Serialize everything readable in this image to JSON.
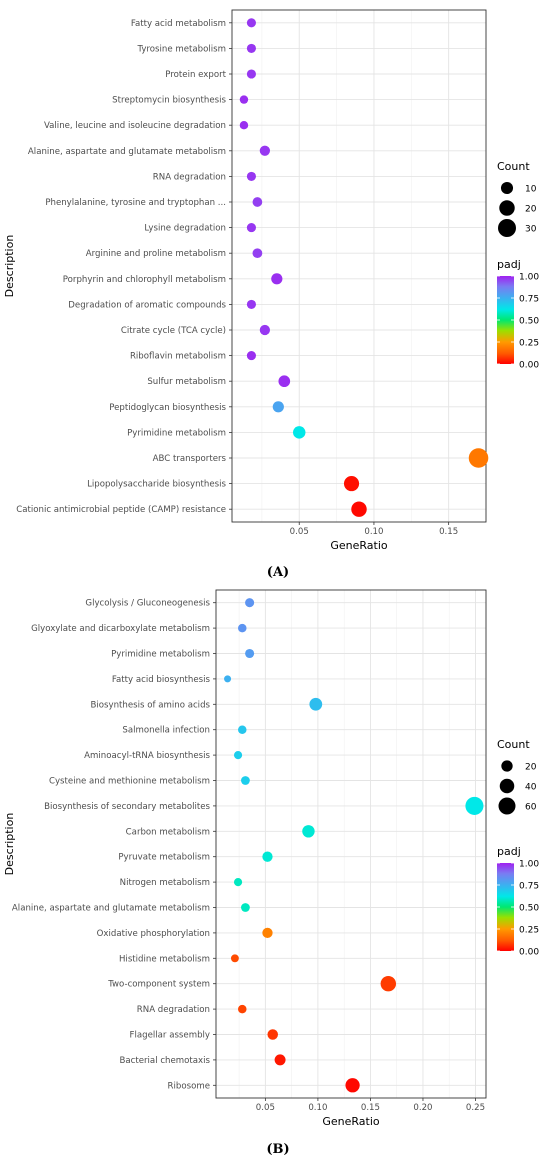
{
  "figure": {
    "label_a": "(A)",
    "label_b": "(B)"
  },
  "chart_data": [
    {
      "type": "scatter",
      "panel": "A",
      "xlabel": "GeneRatio",
      "ylabel": "Description",
      "xlim": [
        0.005,
        0.175
      ],
      "xticks": [
        0.05,
        0.1,
        0.15
      ],
      "xtick_labels": [
        "0.05",
        "0.10",
        "0.15"
      ],
      "grid": true,
      "legend_position": "right",
      "size_legend": {
        "title": "Count",
        "values": [
          10,
          20,
          30
        ],
        "labels": [
          "10",
          "20",
          "30"
        ]
      },
      "color_legend": {
        "title": "padj",
        "range": [
          0,
          1
        ],
        "ticks": [
          1.0,
          0.75,
          0.5,
          0.25,
          0.0
        ],
        "tick_labels": [
          "1.00",
          "0.75",
          "0.50",
          "0.25",
          "0.00"
        ]
      },
      "points": [
        {
          "description": "Fatty acid metabolism",
          "x": 0.018,
          "count": 4,
          "padj": 0.97
        },
        {
          "description": "Tyrosine metabolism",
          "x": 0.018,
          "count": 4,
          "padj": 0.97
        },
        {
          "description": "Protein export",
          "x": 0.018,
          "count": 4,
          "padj": 0.97
        },
        {
          "description": "Streptomycin biosynthesis",
          "x": 0.013,
          "count": 3,
          "padj": 0.98
        },
        {
          "description": "Valine, leucine and isoleucine degradation",
          "x": 0.013,
          "count": 3,
          "padj": 0.98
        },
        {
          "description": "Alanine, aspartate and glutamate metabolism",
          "x": 0.027,
          "count": 6,
          "padj": 0.97
        },
        {
          "description": "RNA degradation",
          "x": 0.018,
          "count": 4,
          "padj": 0.97
        },
        {
          "description": "Phenylalanine, tyrosine and tryptophan ...",
          "x": 0.022,
          "count": 5,
          "padj": 0.96
        },
        {
          "description": "Lysine degradation",
          "x": 0.018,
          "count": 4,
          "padj": 0.97
        },
        {
          "description": "Arginine and proline metabolism",
          "x": 0.022,
          "count": 5,
          "padj": 0.96
        },
        {
          "description": "Porphyrin and chlorophyll metabolism",
          "x": 0.035,
          "count": 8,
          "padj": 0.98
        },
        {
          "description": "Degradation of aromatic compounds",
          "x": 0.018,
          "count": 4,
          "padj": 0.97
        },
        {
          "description": "Citrate cycle (TCA cycle)",
          "x": 0.027,
          "count": 6,
          "padj": 0.97
        },
        {
          "description": "Riboflavin metabolism",
          "x": 0.018,
          "count": 4,
          "padj": 0.98
        },
        {
          "description": "Sulfur metabolism",
          "x": 0.04,
          "count": 9,
          "padj": 0.98
        },
        {
          "description": "Peptidoglycan biosynthesis",
          "x": 0.036,
          "count": 8,
          "padj": 0.78
        },
        {
          "description": "Pyrimidine metabolism",
          "x": 0.05,
          "count": 11,
          "padj": 0.62
        },
        {
          "description": "ABC transporters",
          "x": 0.17,
          "count": 37,
          "padj": 0.18
        },
        {
          "description": "Lipopolysaccharide biosynthesis",
          "x": 0.085,
          "count": 19,
          "padj": 0.02
        },
        {
          "description": "Cationic antimicrobial peptide (CAMP) resistance",
          "x": 0.09,
          "count": 20,
          "padj": 0.01
        }
      ]
    },
    {
      "type": "scatter",
      "panel": "B",
      "xlabel": "GeneRatio",
      "ylabel": "Description",
      "xlim": [
        0.003,
        0.26
      ],
      "xticks": [
        0.05,
        0.1,
        0.15,
        0.2,
        0.25
      ],
      "xtick_labels": [
        "0.05",
        "0.10",
        "0.15",
        "0.20",
        "0.25"
      ],
      "grid": true,
      "legend_position": "right",
      "size_legend": {
        "title": "Count",
        "values": [
          20,
          40,
          60
        ],
        "labels": [
          "20",
          "40",
          "60"
        ]
      },
      "color_legend": {
        "title": "padj",
        "range": [
          0,
          1
        ],
        "ticks": [
          1.0,
          0.75,
          0.5,
          0.25,
          0.0
        ],
        "tick_labels": [
          "1.00",
          "0.75",
          "0.50",
          "0.25",
          "0.00"
        ]
      },
      "points": [
        {
          "description": "Glycolysis / Gluconeogenesis",
          "x": 0.035,
          "count": 10,
          "padj": 0.82
        },
        {
          "description": "Glyoxylate and dicarboxylate metabolism",
          "x": 0.028,
          "count": 8,
          "padj": 0.82
        },
        {
          "description": "Pyrimidine metabolism",
          "x": 0.035,
          "count": 10,
          "padj": 0.8
        },
        {
          "description": "Fatty acid biosynthesis",
          "x": 0.014,
          "count": 4,
          "padj": 0.75
        },
        {
          "description": "Biosynthesis of amino acids",
          "x": 0.098,
          "count": 28,
          "padj": 0.72
        },
        {
          "description": "Salmonella infection",
          "x": 0.028,
          "count": 8,
          "padj": 0.7
        },
        {
          "description": "Aminoacyl-tRNA biosynthesis",
          "x": 0.024,
          "count": 7,
          "padj": 0.68
        },
        {
          "description": "Cysteine and methionine metabolism",
          "x": 0.031,
          "count": 9,
          "padj": 0.68
        },
        {
          "description": "Biosynthesis of secondary metabolites",
          "x": 0.249,
          "count": 70,
          "padj": 0.62
        },
        {
          "description": "Carbon metabolism",
          "x": 0.091,
          "count": 26,
          "padj": 0.6
        },
        {
          "description": "Pyruvate metabolism",
          "x": 0.052,
          "count": 15,
          "padj": 0.6
        },
        {
          "description": "Nitrogen metabolism",
          "x": 0.024,
          "count": 7,
          "padj": 0.58
        },
        {
          "description": "Alanine, aspartate and glutamate metabolism",
          "x": 0.031,
          "count": 9,
          "padj": 0.58
        },
        {
          "description": "Oxidative phosphorylation",
          "x": 0.052,
          "count": 15,
          "padj": 0.2
        },
        {
          "description": "Histidine metabolism",
          "x": 0.021,
          "count": 6,
          "padj": 0.1
        },
        {
          "description": "Two-component system",
          "x": 0.167,
          "count": 47,
          "padj": 0.08
        },
        {
          "description": "RNA degradation",
          "x": 0.028,
          "count": 8,
          "padj": 0.09
        },
        {
          "description": "Flagellar assembly",
          "x": 0.057,
          "count": 16,
          "padj": 0.07
        },
        {
          "description": "Bacterial chemotaxis",
          "x": 0.064,
          "count": 18,
          "padj": 0.03
        },
        {
          "description": "Ribosome",
          "x": 0.133,
          "count": 38,
          "padj": 0.01
        }
      ]
    }
  ]
}
